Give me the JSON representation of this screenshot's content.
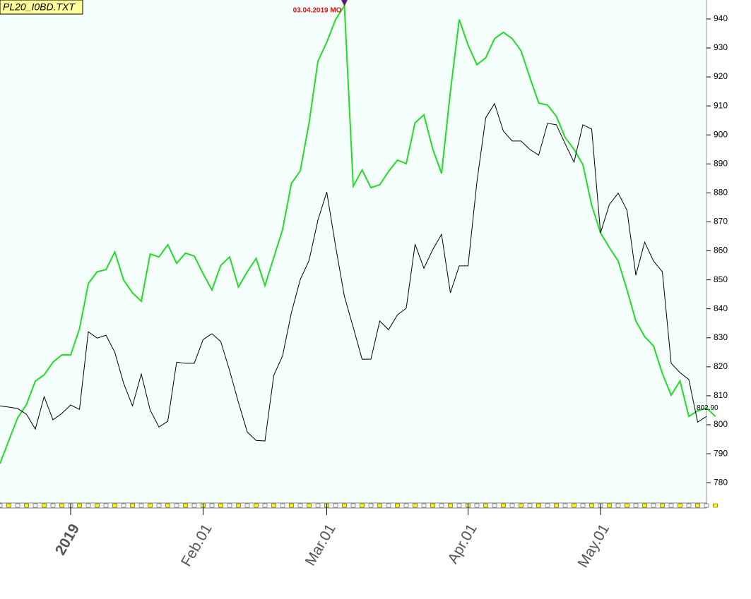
{
  "chart_data": {
    "type": "line",
    "title": "PL20_I0BD.TXT",
    "annotation": "03.04.2019 MO",
    "categories": [
      null,
      null,
      null,
      null,
      null,
      null,
      null,
      null,
      "2019",
      null,
      null,
      null,
      null,
      null,
      null,
      null,
      null,
      null,
      null,
      null,
      null,
      null,
      null,
      "Feb.01",
      null,
      null,
      null,
      null,
      null,
      null,
      null,
      null,
      null,
      null,
      null,
      null,
      null,
      "Mar.01",
      null,
      null,
      null,
      null,
      null,
      null,
      null,
      null,
      null,
      null,
      null,
      null,
      null,
      null,
      null,
      "Apr.01",
      null,
      null,
      null,
      null,
      null,
      null,
      null,
      null,
      null,
      null,
      null,
      null,
      null,
      null,
      "May.01",
      null,
      null,
      null,
      null,
      null,
      null,
      null,
      null,
      null,
      null,
      null,
      null,
      null
    ],
    "series": [
      {
        "color": "#22dd22",
        "values": [
          786.6,
          794.6,
          802.4,
          807.0,
          815.1,
          817.2,
          821.6,
          824.1,
          824.1,
          833.1,
          848.7,
          852.8,
          853.5,
          859.6,
          849.9,
          845.5,
          842.6,
          858.9,
          857.9,
          862.1,
          855.7,
          859.2,
          858.2,
          852.1,
          846.5,
          855.0,
          857.9,
          847.5,
          852.8,
          857.4,
          848.0,
          857.7,
          867.4,
          883.3,
          887.6,
          904.2,
          925.4,
          932.0,
          939.8,
          944.6,
          882.3,
          887.9,
          881.8,
          882.8,
          887.4,
          891.3,
          890.1,
          904.2,
          906.9,
          895.2,
          886.7,
          914.9,
          939.8,
          931.0,
          924.2,
          926.6,
          933.2,
          935.4,
          933.2,
          929.0,
          919.8,
          911.0,
          910.3,
          906.4,
          899.1,
          895.0,
          889.8,
          875.7,
          866.2,
          861.1,
          856.5,
          846.5,
          835.8,
          830.4,
          827.2,
          817.7,
          810.2,
          815.1,
          802.9,
          804.8,
          805.8,
          802.9
        ]
      },
      {
        "color": "#000000",
        "values": [
          806.5,
          806.1,
          805.6,
          803.6,
          798.5,
          809.7,
          801.7,
          803.9,
          806.8,
          805.3,
          832.1,
          829.9,
          830.9,
          825.0,
          814.3,
          806.5,
          817.5,
          805.1,
          799.2,
          801.2,
          821.6,
          821.2,
          821.2,
          829.4,
          831.4,
          828.7,
          818.7,
          807.7,
          797.5,
          794.6,
          794.4,
          817.0,
          823.8,
          838.7,
          850.1,
          856.7,
          870.6,
          880.3,
          861.6,
          844.3,
          833.6,
          822.6,
          822.6,
          835.8,
          832.8,
          837.9,
          840.2,
          862.3,
          854.0,
          860.4,
          865.7,
          845.5,
          854.8,
          854.8,
          883.7,
          905.9,
          910.8,
          901.3,
          897.9,
          897.9,
          895.0,
          893.0,
          904.0,
          903.5,
          896.9,
          890.6,
          903.5,
          902.0,
          866.2,
          876.0,
          879.9,
          874.0,
          851.6,
          863.0,
          856.5,
          852.8,
          821.2,
          818.0,
          815.6,
          800.9,
          802.9,
          null
        ],
        "value_labels": [
          null,
          null,
          null,
          null,
          null,
          null,
          null,
          null,
          null,
          null,
          null,
          null,
          null,
          null,
          null,
          null,
          null,
          null,
          null,
          null,
          null,
          null,
          null,
          null,
          null,
          null,
          null,
          null,
          null,
          null,
          null,
          null,
          null,
          null,
          null,
          null,
          null,
          null,
          null,
          null,
          null,
          null,
          null,
          null,
          null,
          null,
          null,
          null,
          null,
          null,
          null,
          null,
          null,
          null,
          null,
          null,
          null,
          null,
          null,
          null,
          null,
          null,
          null,
          null,
          null,
          null,
          null,
          null,
          null,
          null,
          null,
          null,
          null,
          null,
          null,
          null,
          null,
          null,
          null,
          null,
          "802.90",
          null
        ]
      }
    ],
    "ylim": [
      772.5,
      944.6
    ],
    "yticks": [
      780,
      790,
      800,
      810,
      820,
      830,
      840,
      850,
      860,
      870,
      880,
      890,
      900,
      910,
      920,
      930,
      940
    ]
  }
}
